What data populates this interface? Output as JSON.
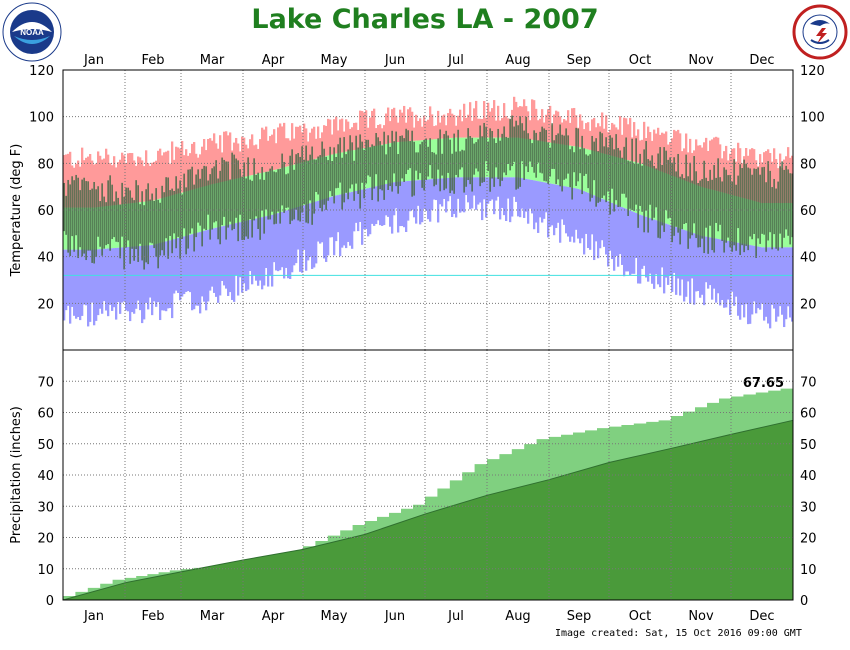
{
  "title": "Lake Charles LA - 2007",
  "footer": "Image created: Sat, 15 Oct 2016 09:00 GMT",
  "logos": {
    "left": {
      "icon": "noaa-logo",
      "text": "NOAA"
    },
    "right": {
      "icon": "national-weather-service-logo"
    }
  },
  "colors": {
    "title": "#1f7f1f",
    "record_high": "#ff9a9a",
    "normal_range": "#9aff9a",
    "record_low": "#9a9aff",
    "actual": "#4a6a4a",
    "freezing_line": "#40e0e0",
    "precip_actual": "#80d080",
    "precip_normal": "#4a9a3a"
  },
  "chart_data": [
    {
      "type": "area",
      "name": "temperature",
      "months": [
        "Jan",
        "Feb",
        "Mar",
        "Apr",
        "May",
        "Jun",
        "Jul",
        "Aug",
        "Sep",
        "Oct",
        "Nov",
        "Dec"
      ],
      "ylabel": "Temperature (deg F)",
      "ylim": [
        0,
        120
      ],
      "yticks": [
        20,
        40,
        60,
        80,
        100,
        120
      ],
      "grid": true,
      "freezing_line": 32,
      "monthly_normal_high": [
        61,
        64,
        71,
        77,
        84,
        89,
        91,
        91,
        87,
        80,
        70,
        63
      ],
      "monthly_normal_low": [
        43,
        45,
        52,
        58,
        66,
        72,
        74,
        74,
        69,
        58,
        49,
        44
      ],
      "monthly_record_high": [
        82,
        83,
        88,
        92,
        96,
        100,
        101,
        104,
        99,
        94,
        88,
        82
      ],
      "monthly_record_low": [
        15,
        18,
        22,
        33,
        45,
        55,
        62,
        60,
        47,
        33,
        24,
        15
      ],
      "monthly_actual_high": [
        70,
        66,
        79,
        78,
        86,
        89,
        90,
        95,
        90,
        85,
        77,
        75
      ],
      "monthly_actual_low": [
        44,
        39,
        52,
        54,
        64,
        72,
        74,
        75,
        71,
        58,
        48,
        46
      ]
    },
    {
      "type": "area",
      "name": "precipitation",
      "months": [
        "Jan",
        "Feb",
        "Mar",
        "Apr",
        "May",
        "Jun",
        "Jul",
        "Aug",
        "Sep",
        "Oct",
        "Nov",
        "Dec"
      ],
      "ylabel": "Precipitation (inches)",
      "ylim": [
        0,
        80
      ],
      "yticks": [
        0,
        10,
        20,
        30,
        40,
        50,
        60,
        70
      ],
      "grid": true,
      "cumulative_total": "67.65",
      "cumulative_actual_month_end": [
        6.5,
        9.5,
        11.5,
        15.5,
        24.0,
        30.5,
        43.5,
        51.5,
        55.0,
        57.5,
        64.5,
        67.65
      ],
      "cumulative_normal_month_end": [
        5.5,
        9.0,
        12.8,
        16.2,
        21.0,
        27.5,
        33.5,
        38.5,
        44.0,
        48.5,
        53.0,
        57.5
      ]
    }
  ]
}
